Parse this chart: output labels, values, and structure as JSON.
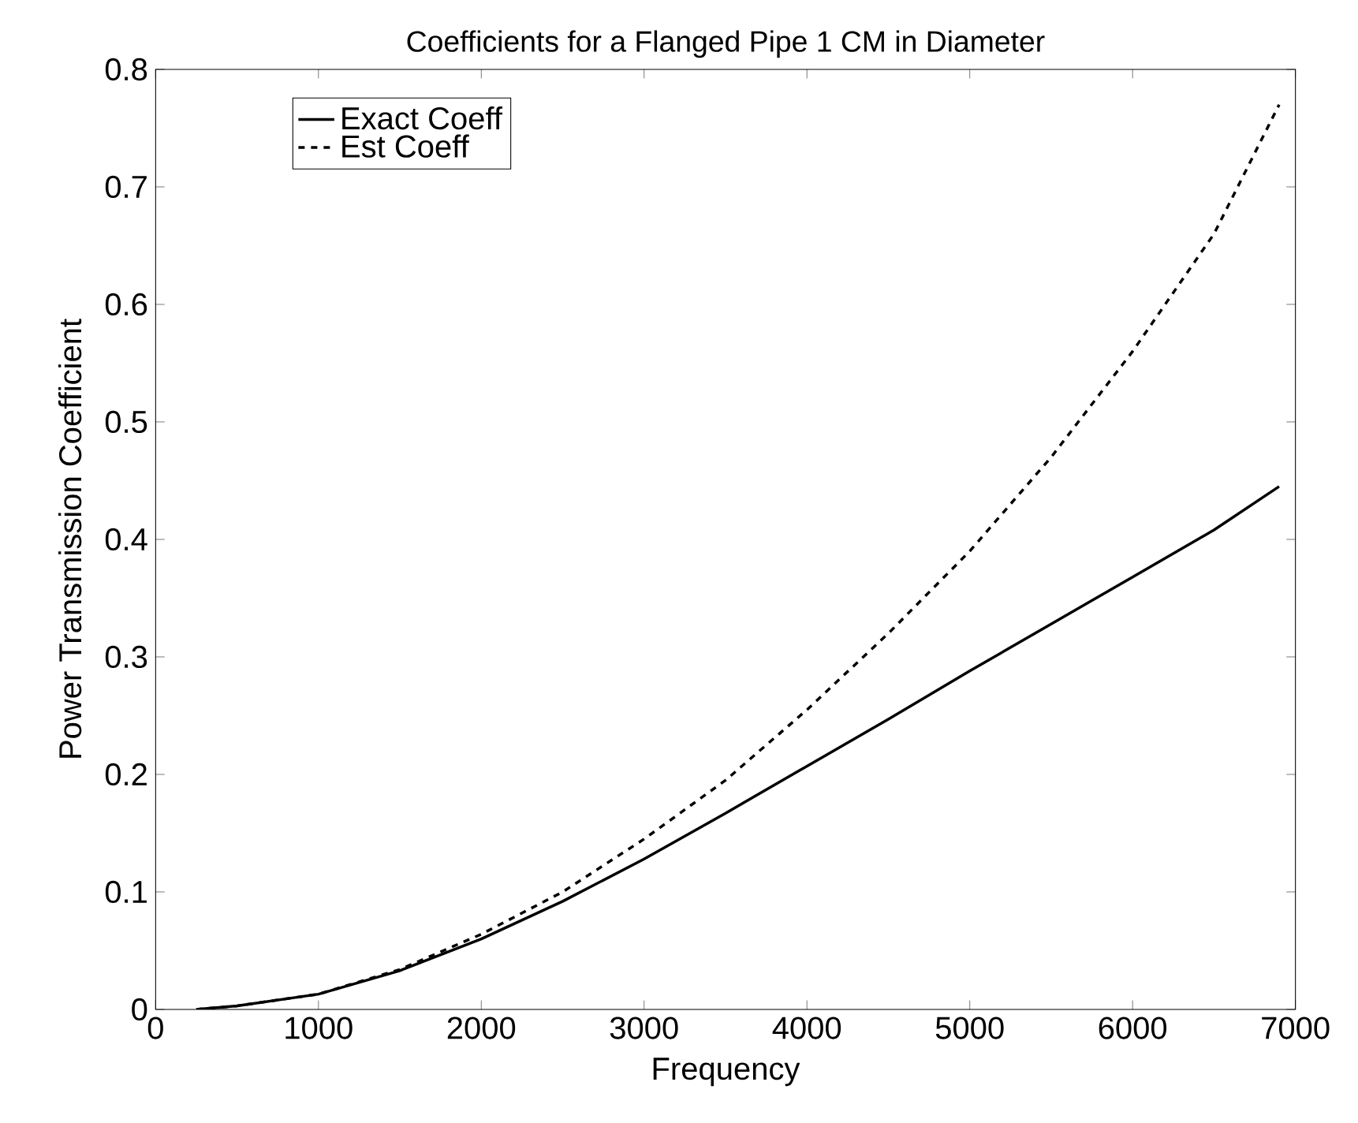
{
  "chart_data": {
    "type": "line",
    "title": "Coefficients for a Flanged Pipe 1 CM in Diameter",
    "xlabel": "Frequency",
    "ylabel": "Power Transmission Coefficient",
    "xlim": [
      0,
      7000
    ],
    "ylim": [
      0,
      0.8
    ],
    "xticks": [
      0,
      1000,
      2000,
      3000,
      4000,
      5000,
      6000,
      7000
    ],
    "yticks": [
      0,
      0.1,
      0.2,
      0.3,
      0.4,
      0.5,
      0.6,
      0.7,
      0.8
    ],
    "grid": false,
    "legend": "top left",
    "series": [
      {
        "name": "Exact Coeff",
        "color": "#000000",
        "line_style": "solid",
        "x": [
          250,
          500,
          1000,
          1500,
          2000,
          2500,
          3000,
          3500,
          4000,
          4500,
          5000,
          5500,
          6000,
          6500,
          6900
        ],
        "values": [
          0,
          0.003,
          0.013,
          0.033,
          0.06,
          0.092,
          0.128,
          0.167,
          0.207,
          0.247,
          0.288,
          0.328,
          0.368,
          0.408,
          0.445
        ]
      },
      {
        "name": "Est Coeff",
        "color": "#000000",
        "line_style": "dashed",
        "x": [
          250,
          500,
          1000,
          1500,
          2000,
          2500,
          3000,
          3500,
          4000,
          4500,
          5000,
          5500,
          6000,
          6500,
          6900
        ],
        "values": [
          0,
          0.003,
          0.013,
          0.034,
          0.064,
          0.1,
          0.145,
          0.195,
          0.255,
          0.32,
          0.39,
          0.47,
          0.56,
          0.66,
          0.77
        ]
      }
    ]
  }
}
